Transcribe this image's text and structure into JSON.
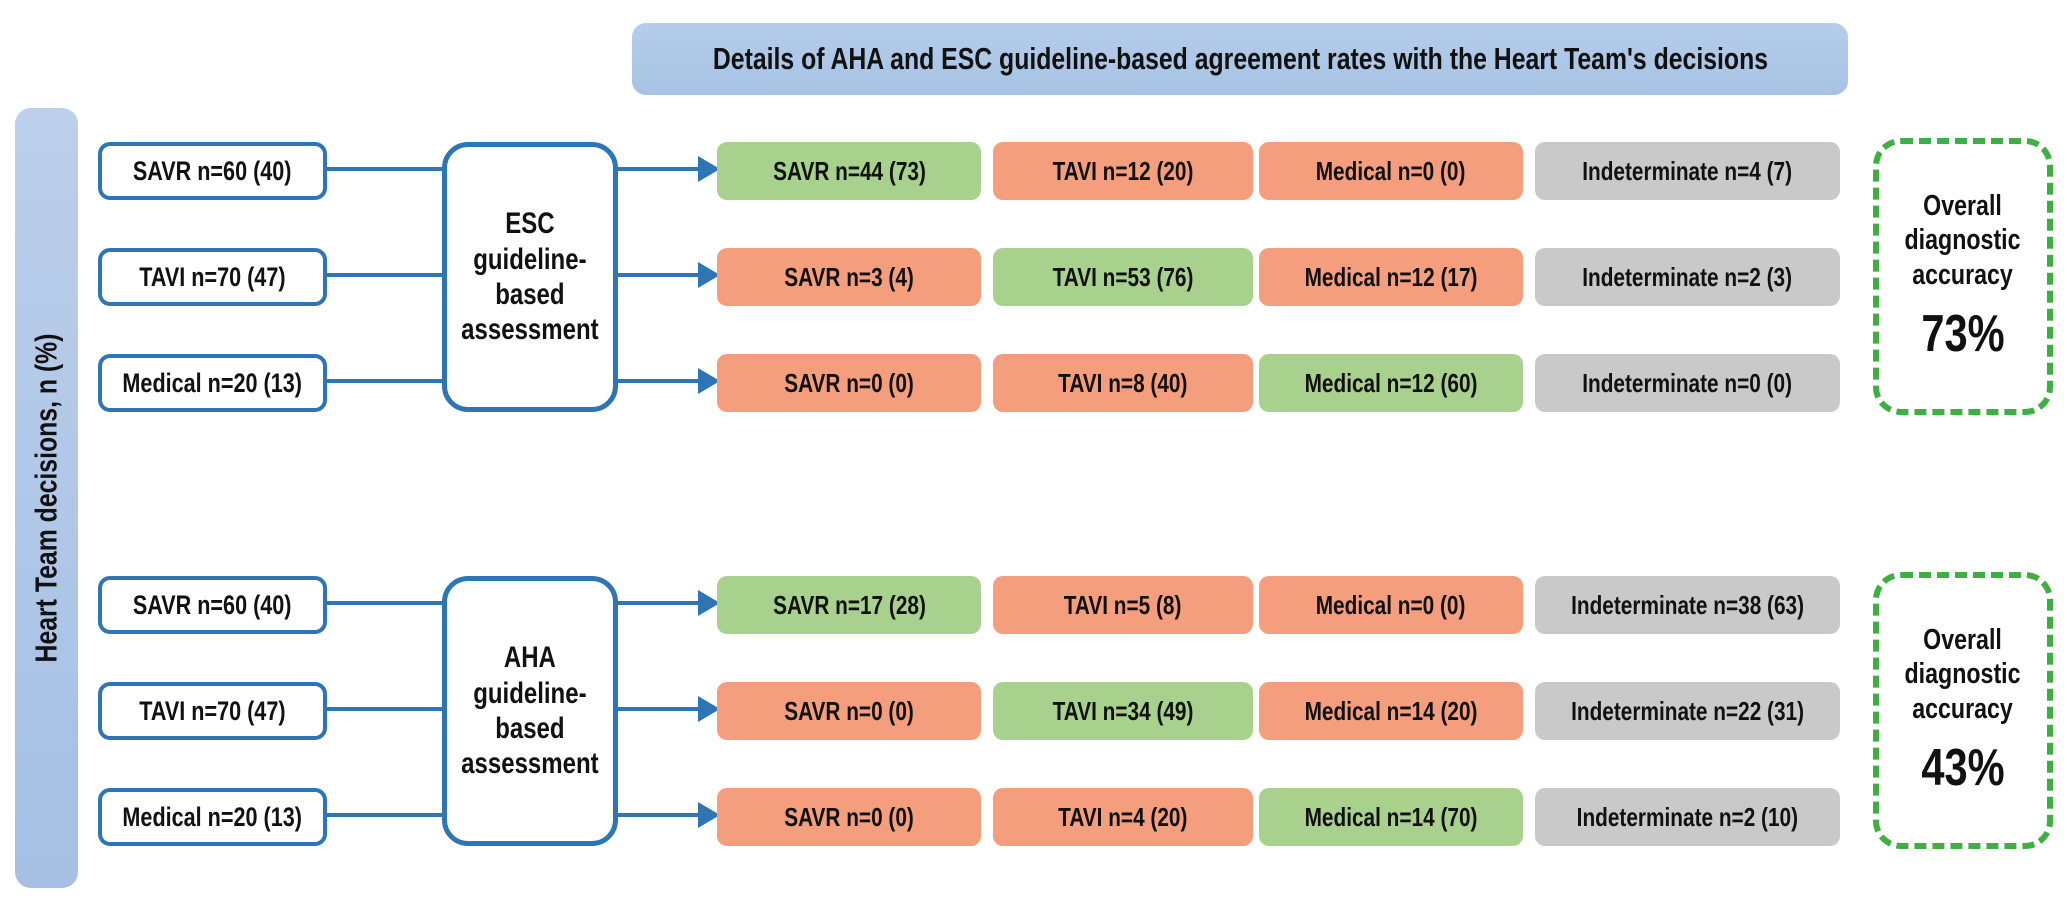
{
  "title": "Details of AHA and ESC guideline-based agreement rates with the Heart Team's decisions",
  "side_label": "Heart Team decisions, n (%)",
  "colors": {
    "blue_border": "#2E75B6",
    "light_blue": "#AEC7E8",
    "match_green": "#A9D18E",
    "mismatch_salmon": "#F49E7E",
    "indeterminate_gray": "#C9C9C9",
    "dashed_green": "#3FAF44"
  },
  "sections": [
    {
      "name": "ESC",
      "assessment": "ESC\nguideline-\nbased\nassessment",
      "inputs": [
        {
          "label": "SAVR n=60 (40)"
        },
        {
          "label": "TAVI n=70 (47)"
        },
        {
          "label": "Medical n=20 (13)"
        }
      ],
      "rows": [
        {
          "cells": [
            {
              "label": "SAVR n=44 (73)",
              "bg": "#A9D18E"
            },
            {
              "label": "TAVI n=12 (20)",
              "bg": "#F49E7E"
            },
            {
              "label": "Medical n=0 (0)",
              "bg": "#F49E7E"
            },
            {
              "label": "Indeterminate n=4 (7)",
              "bg": "#C9C9C9"
            }
          ]
        },
        {
          "cells": [
            {
              "label": "SAVR n=3 (4)",
              "bg": "#F49E7E"
            },
            {
              "label": "TAVI n=53 (76)",
              "bg": "#A9D18E"
            },
            {
              "label": "Medical n=12 (17)",
              "bg": "#F49E7E"
            },
            {
              "label": "Indeterminate n=2 (3)",
              "bg": "#C9C9C9"
            }
          ]
        },
        {
          "cells": [
            {
              "label": "SAVR n=0 (0)",
              "bg": "#F49E7E"
            },
            {
              "label": "TAVI n=8 (40)",
              "bg": "#F49E7E"
            },
            {
              "label": "Medical n=12 (60)",
              "bg": "#A9D18E"
            },
            {
              "label": "Indeterminate n=0 (0)",
              "bg": "#C9C9C9"
            }
          ]
        }
      ],
      "overall": {
        "caption": "Overall\ndiagnostic\naccuracy",
        "value": "73%"
      }
    },
    {
      "name": "AHA",
      "assessment": "AHA\nguideline-\nbased\nassessment",
      "inputs": [
        {
          "label": "SAVR n=60 (40)"
        },
        {
          "label": "TAVI n=70 (47)"
        },
        {
          "label": "Medical n=20 (13)"
        }
      ],
      "rows": [
        {
          "cells": [
            {
              "label": "SAVR n=17 (28)",
              "bg": "#A9D18E"
            },
            {
              "label": "TAVI n=5 (8)",
              "bg": "#F49E7E"
            },
            {
              "label": "Medical n=0 (0)",
              "bg": "#F49E7E"
            },
            {
              "label": "Indeterminate n=38 (63)",
              "bg": "#C9C9C9"
            }
          ]
        },
        {
          "cells": [
            {
              "label": "SAVR n=0 (0)",
              "bg": "#F49E7E"
            },
            {
              "label": "TAVI n=34 (49)",
              "bg": "#A9D18E"
            },
            {
              "label": "Medical n=14 (20)",
              "bg": "#F49E7E"
            },
            {
              "label": "Indeterminate n=22 (31)",
              "bg": "#C9C9C9"
            }
          ]
        },
        {
          "cells": [
            {
              "label": "SAVR n=0 (0)",
              "bg": "#F49E7E"
            },
            {
              "label": "TAVI n=4 (20)",
              "bg": "#F49E7E"
            },
            {
              "label": "Medical n=14 (70)",
              "bg": "#A9D18E"
            },
            {
              "label": "Indeterminate n=2 (10)",
              "bg": "#C9C9C9"
            }
          ]
        }
      ],
      "overall": {
        "caption": "Overall\ndiagnostic\naccuracy",
        "value": "43%"
      }
    }
  ]
}
